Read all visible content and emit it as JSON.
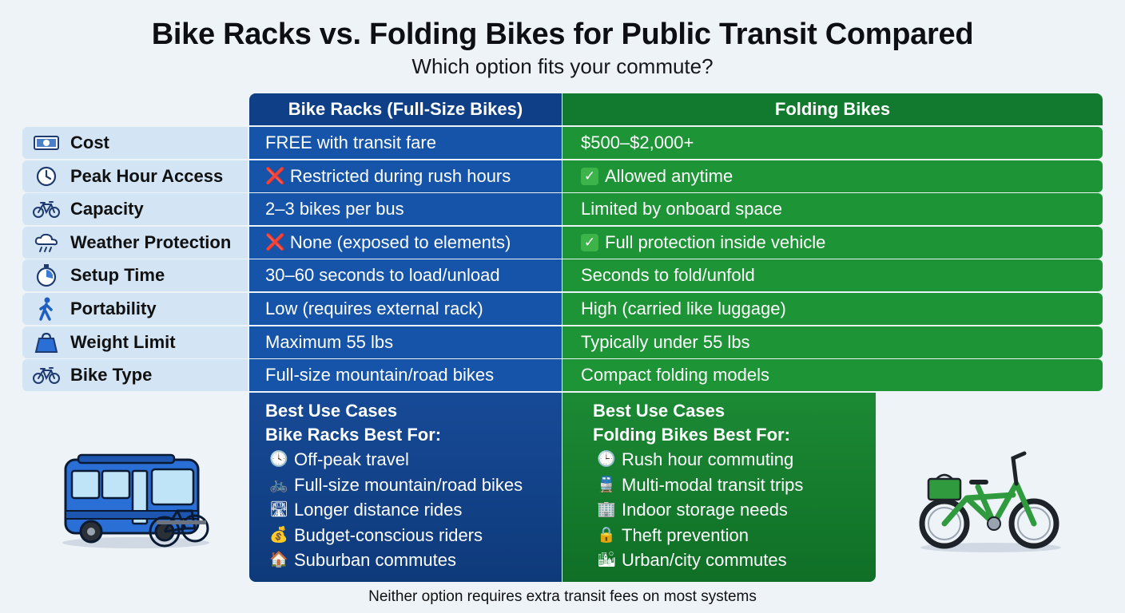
{
  "title": "Bike Racks vs. Folding Bikes for Public Transit Compared",
  "subtitle": "Which option fits your commute?",
  "columns": {
    "racks": "Bike Racks (Full-Size Bikes)",
    "folding": "Folding Bikes"
  },
  "rows": [
    {
      "label": "Cost",
      "icon": "cash-icon",
      "racks": "FREE with transit fare",
      "folding": "$500–$2,000+"
    },
    {
      "label": "Peak Hour Access",
      "icon": "clock-icon",
      "racks": "Restricted during rush hours",
      "racks_mark": "❌",
      "folding": "Allowed anytime",
      "folding_mark": "✓"
    },
    {
      "label": "Capacity",
      "icon": "bicycle-icon",
      "racks": "2–3 bikes per bus",
      "folding": "Limited by onboard space"
    },
    {
      "label": "Weather Protection",
      "icon": "rain-cloud-icon",
      "racks": "None (exposed to elements)",
      "racks_mark": "❌",
      "folding": "Full protection inside vehicle",
      "folding_mark": "✓"
    },
    {
      "label": "Setup Time",
      "icon": "stopwatch-icon",
      "racks": "30–60 seconds to load/unload",
      "folding": "Seconds to fold/unfold"
    },
    {
      "label": "Portability",
      "icon": "walking-person-icon",
      "racks": "Low (requires external rack)",
      "folding": "High (carried like luggage)"
    },
    {
      "label": "Weight Limit",
      "icon": "weight-icon",
      "racks": "Maximum 55 lbs",
      "folding": "Typically under 55 lbs"
    },
    {
      "label": "Bike Type",
      "icon": "bicycle-icon",
      "racks": "Full-size mountain/road bikes",
      "folding": "Compact folding models"
    }
  ],
  "use_cases": {
    "racks": {
      "heading": "Best Use Cases",
      "subheading": "Bike Racks Best For:",
      "items": [
        {
          "icon": "clock-icon",
          "glyph": "🕓",
          "text": "Off-peak travel"
        },
        {
          "icon": "bicycle-icon",
          "glyph": "🚲",
          "text": "Full-size mountain/road bikes"
        },
        {
          "icon": "road-icon",
          "glyph": "🛣",
          "text": "Longer distance rides"
        },
        {
          "icon": "money-bag-icon",
          "glyph": "💰",
          "text": "Budget-conscious riders"
        },
        {
          "icon": "house-icon",
          "glyph": "🏠",
          "text": "Suburban commutes"
        }
      ]
    },
    "folding": {
      "heading": "Best Use Cases",
      "subheading": "Folding Bikes Best For:",
      "items": [
        {
          "icon": "clock-icon",
          "glyph": "🕒",
          "text": "Rush hour commuting"
        },
        {
          "icon": "train-icon",
          "glyph": "🚆",
          "text": "Multi-modal transit trips"
        },
        {
          "icon": "building-icon",
          "glyph": "🏢",
          "text": "Indoor storage needs"
        },
        {
          "icon": "lock-icon",
          "glyph": "🔒",
          "text": "Theft prevention"
        },
        {
          "icon": "city-icon",
          "glyph": "🏙",
          "text": "Urban/city commutes"
        }
      ]
    }
  },
  "footer": "Neither option requires extra transit fees on most systems",
  "colors": {
    "racks_header": "#0f3f86",
    "racks_cell": "#1554a8",
    "folding_header": "#127a2e",
    "folding_cell": "#1d9436",
    "label_cell": "#d3e5f5"
  }
}
